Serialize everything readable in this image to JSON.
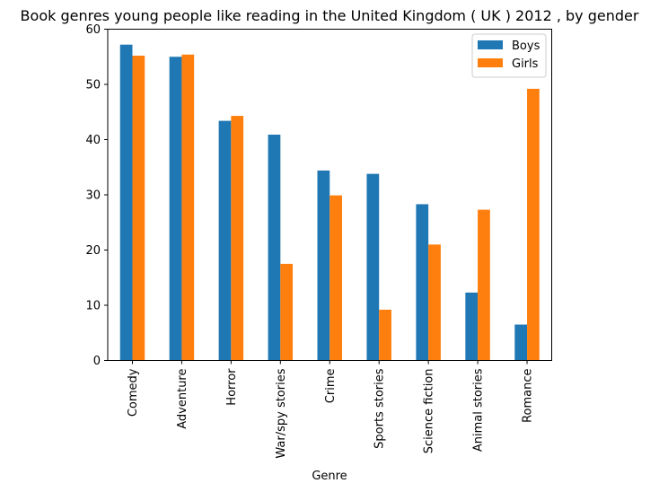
{
  "chart_data": {
    "type": "bar",
    "title": "Book genres young people like reading in the United Kingdom ( UK ) 2012 , by gender",
    "xlabel": "Genre",
    "ylabel": "",
    "categories": [
      "Comedy",
      "Adventure",
      "Horror",
      "War/spy stories",
      "Crime",
      "Sports stories",
      "Science fiction",
      "Animal stories",
      "Romance"
    ],
    "series": [
      {
        "name": "Boys",
        "color": "#1f77b4",
        "values": [
          57.2,
          55.0,
          43.4,
          40.9,
          34.4,
          33.8,
          28.3,
          12.3,
          6.5
        ]
      },
      {
        "name": "Girls",
        "color": "#ff7f0e",
        "values": [
          55.2,
          55.4,
          44.3,
          17.5,
          29.9,
          9.2,
          21.0,
          27.3,
          49.2
        ]
      }
    ],
    "ylim": [
      0,
      60
    ],
    "yticks": [
      "0",
      "10",
      "20",
      "30",
      "40",
      "50",
      "60"
    ],
    "grid": false,
    "legend": "top-right"
  }
}
